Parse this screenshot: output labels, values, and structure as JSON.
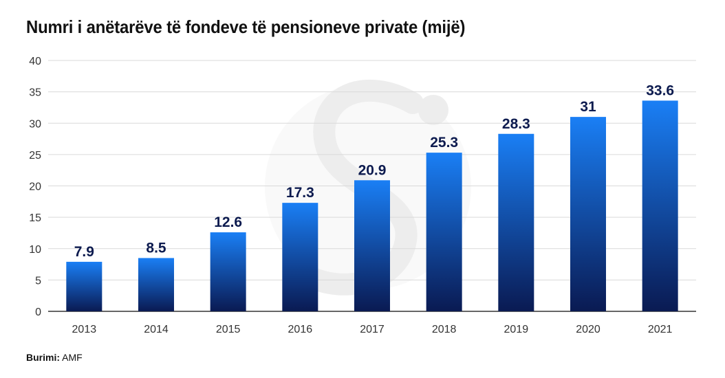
{
  "title": "Numri i anëtarëve të fondeve të pensioneve private (mijë)",
  "source": {
    "label": "Burimi:",
    "value": "AMF"
  },
  "colors": {
    "bar_top": "#1a7ff5",
    "bar_bottom": "#0a1a52",
    "value_label": "#0d1b4f",
    "grid": "#d9d9d9",
    "axis": "#333333",
    "watermark": "#ededed"
  },
  "chart_data": {
    "type": "bar",
    "title": "Numri i anëtarëve të fondeve të pensioneve private (mijë)",
    "categories": [
      "2013",
      "2014",
      "2015",
      "2016",
      "2017",
      "2018",
      "2019",
      "2020",
      "2021"
    ],
    "values": [
      7.9,
      8.5,
      12.6,
      17.3,
      20.9,
      25.3,
      28.3,
      31,
      33.6
    ],
    "value_labels": [
      "7.9",
      "8.5",
      "12.6",
      "17.3",
      "20.9",
      "25.3",
      "28.3",
      "31",
      "33.6"
    ],
    "xlabel": "",
    "ylabel": "",
    "ylim": [
      0,
      40
    ],
    "yticks": [
      0,
      5,
      10,
      15,
      20,
      25,
      30,
      35,
      40
    ],
    "grid": true,
    "legend": "none"
  }
}
